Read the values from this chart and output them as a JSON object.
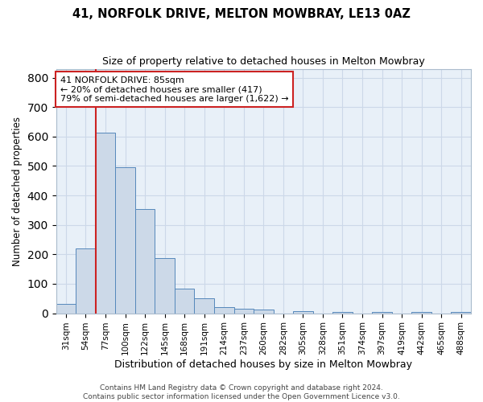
{
  "title_line1": "41, NORFOLK DRIVE, MELTON MOWBRAY, LE13 0AZ",
  "title_line2": "Size of property relative to detached houses in Melton Mowbray",
  "xlabel": "Distribution of detached houses by size in Melton Mowbray",
  "ylabel": "Number of detached properties",
  "categories": [
    "31sqm",
    "54sqm",
    "77sqm",
    "100sqm",
    "122sqm",
    "145sqm",
    "168sqm",
    "191sqm",
    "214sqm",
    "237sqm",
    "260sqm",
    "282sqm",
    "305sqm",
    "328sqm",
    "351sqm",
    "374sqm",
    "397sqm",
    "419sqm",
    "442sqm",
    "465sqm",
    "488sqm"
  ],
  "values": [
    33,
    220,
    612,
    495,
    355,
    187,
    83,
    50,
    22,
    15,
    13,
    0,
    7,
    0,
    5,
    0,
    5,
    0,
    4,
    0,
    3
  ],
  "bar_color": "#ccd9e8",
  "bar_edge_color": "#5588bb",
  "red_line_x": 1.5,
  "annotation_text_line1": "41 NORFOLK DRIVE: 85sqm",
  "annotation_text_line2": "← 20% of detached houses are smaller (417)",
  "annotation_text_line3": "79% of semi-detached houses are larger (1,622) →",
  "annotation_box_color": "#ffffff",
  "annotation_box_edge_color": "#cc2222",
  "grid_color": "#ccd8e8",
  "background_color": "#e8f0f8",
  "ylim": [
    0,
    830
  ],
  "yticks": [
    0,
    100,
    200,
    300,
    400,
    500,
    600,
    700,
    800
  ],
  "footer_line1": "Contains HM Land Registry data © Crown copyright and database right 2024.",
  "footer_line2": "Contains public sector information licensed under the Open Government Licence v3.0."
}
